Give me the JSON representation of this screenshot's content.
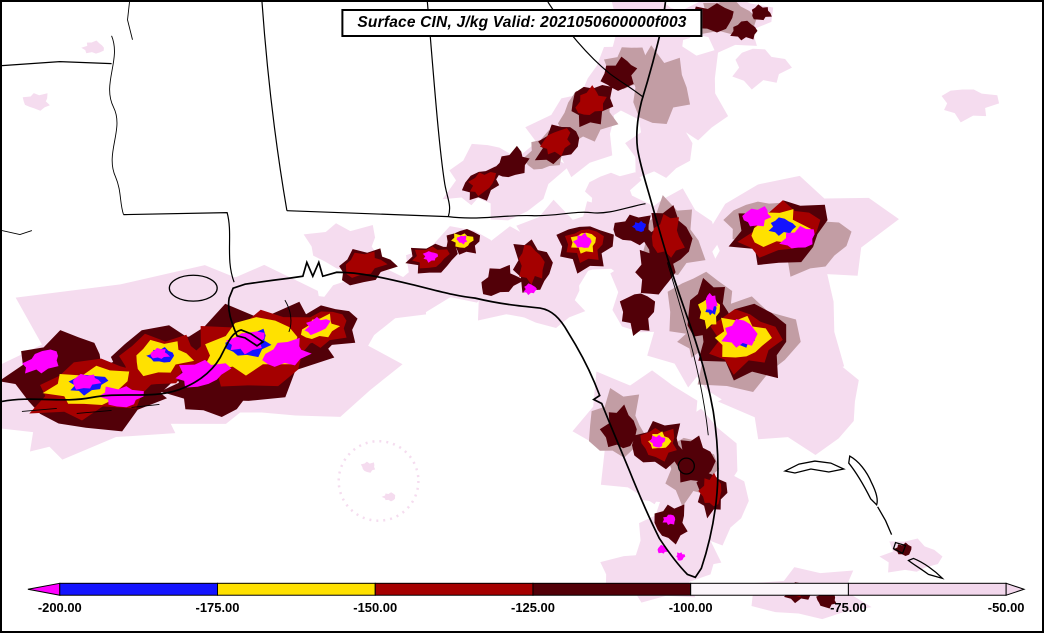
{
  "title_box": {
    "text": "Surface CIN, J/kg Valid: 2021050600000f003"
  },
  "chart_data": {
    "type": "heatmap",
    "subtype": "filled-contour-weather-map",
    "title": "Surface CIN, J/kg Valid: 2021050600000f003",
    "variable": "Surface CIN",
    "units": "J/kg",
    "valid_time": "2021050600000f003",
    "region": "Southeastern United States, Gulf of Mexico, Florida, northwest Bahamas",
    "levels": [
      -200,
      -175,
      -150,
      -125,
      -100,
      -75,
      -50
    ],
    "colorbar": {
      "tick_labels": [
        "-200.00",
        "-175.00",
        "-150.00",
        "-125.00",
        "-100.00",
        "-75.00",
        "-50.00"
      ],
      "segments": [
        {
          "range": "< -200",
          "color": "#FF00FF",
          "shape": "arrow-left"
        },
        {
          "range": "-200 to -175",
          "color": "#1414FF"
        },
        {
          "range": "-175 to -150",
          "color": "#FFE100"
        },
        {
          "range": "-150 to -125",
          "color": "#A50000"
        },
        {
          "range": "-125 to -100",
          "color": "#520008"
        },
        {
          "range": "-100 to -75",
          "color": "#FBF5FA"
        },
        {
          "range": "-75 to -50",
          "color": "#F2D7EC"
        },
        {
          "range": "> -50",
          "color": "#F2D7EC",
          "shape": "arrow-right"
        }
      ]
    },
    "map_colors": {
      "pink": "#F5DCEF",
      "grey": "#C29DA4",
      "maroon": "#520008",
      "red": "#A50000",
      "yellow": "#FFE100",
      "blue": "#1414FF",
      "magenta": "#FF00FF",
      "outline": "#000000",
      "background": "#FFFFFF"
    },
    "blobs": [
      [
        170,
        352,
        190,
        78,
        -8,
        "pink"
      ],
      [
        88,
        398,
        115,
        48,
        -5,
        "pink"
      ],
      [
        300,
        362,
        95,
        58,
        -15,
        "pink"
      ],
      [
        253,
        302,
        62,
        30,
        -10,
        "pink"
      ],
      [
        380,
        300,
        62,
        28,
        -12,
        "pink"
      ],
      [
        344,
        246,
        36,
        22,
        0,
        "pink"
      ],
      [
        450,
        270,
        56,
        36,
        -20,
        "pink"
      ],
      [
        520,
        272,
        56,
        40,
        -30,
        "pink"
      ],
      [
        566,
        246,
        46,
        40,
        0,
        "pink"
      ],
      [
        620,
        236,
        46,
        40,
        0,
        "pink"
      ],
      [
        672,
        242,
        42,
        46,
        0,
        "pink"
      ],
      [
        520,
        182,
        46,
        28,
        -35,
        "pink"
      ],
      [
        576,
        130,
        46,
        36,
        -40,
        "pink"
      ],
      [
        622,
        82,
        40,
        36,
        -40,
        "pink"
      ],
      [
        660,
        60,
        36,
        46,
        0,
        "pink"
      ],
      [
        648,
        24,
        46,
        28,
        0,
        "pink"
      ],
      [
        728,
        20,
        40,
        26,
        0,
        "pink"
      ],
      [
        690,
        92,
        36,
        44,
        0,
        "pink"
      ],
      [
        660,
        142,
        30,
        36,
        0,
        "pink"
      ],
      [
        612,
        190,
        26,
        18,
        -20,
        "pink"
      ],
      [
        545,
        300,
        42,
        24,
        0,
        "pink"
      ],
      [
        480,
        172,
        36,
        24,
        -35,
        "pink"
      ],
      [
        790,
        238,
        88,
        56,
        -10,
        "pink"
      ],
      [
        762,
        332,
        88,
        76,
        0,
        "pink"
      ],
      [
        800,
        402,
        62,
        46,
        0,
        "pink"
      ],
      [
        700,
        322,
        46,
        62,
        0,
        "pink"
      ],
      [
        650,
        292,
        40,
        40,
        0,
        "pink"
      ],
      [
        640,
        432,
        56,
        62,
        0,
        "pink"
      ],
      [
        690,
        472,
        46,
        56,
        0,
        "pink"
      ],
      [
        676,
        542,
        40,
        40,
        0,
        "pink"
      ],
      [
        716,
        502,
        30,
        42,
        0,
        "pink"
      ],
      [
        656,
        576,
        52,
        24,
        0,
        "pink"
      ],
      [
        810,
        596,
        56,
        24,
        0,
        "pink"
      ],
      [
        912,
        558,
        28,
        16,
        0,
        "pink"
      ],
      [
        970,
        102,
        26,
        15,
        0,
        "pink"
      ],
      [
        35,
        100,
        13,
        8,
        0,
        "pink"
      ],
      [
        92,
        46,
        10,
        6,
        0,
        "pink"
      ],
      [
        760,
        66,
        26,
        18,
        0,
        "pink"
      ],
      [
        368,
        468,
        7,
        5,
        0,
        "pink"
      ],
      [
        389,
        498,
        6,
        4,
        0,
        "pink"
      ],
      [
        378,
        482,
        40,
        40,
        0,
        "ring"
      ],
      [
        660,
        86,
        30,
        35,
        0,
        "grey"
      ],
      [
        628,
        66,
        22,
        20,
        -30,
        "grey"
      ],
      [
        586,
        116,
        28,
        24,
        -35,
        "grey"
      ],
      [
        672,
        240,
        30,
        36,
        0,
        "grey"
      ],
      [
        740,
        342,
        56,
        46,
        0,
        "grey"
      ],
      [
        700,
        312,
        30,
        40,
        0,
        "grey"
      ],
      [
        618,
        426,
        28,
        32,
        0,
        "grey"
      ],
      [
        812,
        242,
        36,
        28,
        -15,
        "grey"
      ],
      [
        758,
        222,
        30,
        22,
        -15,
        "grey"
      ],
      [
        545,
        152,
        20,
        16,
        -35,
        "grey"
      ],
      [
        725,
        16,
        30,
        17,
        0,
        "grey"
      ],
      [
        690,
        470,
        24,
        30,
        0,
        "grey"
      ],
      [
        95,
        392,
        72,
        36,
        -8,
        "maroon"
      ],
      [
        55,
        366,
        46,
        28,
        -15,
        "maroon"
      ],
      [
        160,
        362,
        56,
        32,
        -10,
        "maroon"
      ],
      [
        255,
        352,
        76,
        46,
        -12,
        "maroon"
      ],
      [
        210,
        392,
        40,
        22,
        0,
        "maroon"
      ],
      [
        320,
        332,
        36,
        22,
        -20,
        "maroon"
      ],
      [
        365,
        266,
        28,
        16,
        -15,
        "maroon"
      ],
      [
        432,
        258,
        24,
        14,
        -10,
        "maroon"
      ],
      [
        463,
        241,
        16,
        12,
        0,
        "maroon"
      ],
      [
        500,
        281,
        20,
        13,
        -20,
        "maroon"
      ],
      [
        532,
        266,
        18,
        25,
        -10,
        "maroon"
      ],
      [
        585,
        246,
        26,
        22,
        0,
        "maroon"
      ],
      [
        635,
        229,
        20,
        14,
        0,
        "maroon"
      ],
      [
        668,
        238,
        22,
        28,
        0,
        "maroon"
      ],
      [
        482,
        183,
        20,
        13,
        -35,
        "maroon"
      ],
      [
        512,
        163,
        18,
        12,
        -35,
        "maroon"
      ],
      [
        558,
        143,
        22,
        16,
        -35,
        "maroon"
      ],
      [
        592,
        103,
        22,
        18,
        -40,
        "maroon"
      ],
      [
        620,
        73,
        18,
        14,
        -40,
        "maroon"
      ],
      [
        712,
        16,
        22,
        13,
        0,
        "maroon"
      ],
      [
        745,
        29,
        12,
        9,
        0,
        "maroon"
      ],
      [
        762,
        11,
        10,
        7,
        0,
        "maroon"
      ],
      [
        782,
        232,
        46,
        30,
        -15,
        "maroon"
      ],
      [
        745,
        342,
        42,
        36,
        0,
        "maroon"
      ],
      [
        710,
        312,
        22,
        28,
        0,
        "maroon"
      ],
      [
        655,
        272,
        18,
        22,
        0,
        "maroon"
      ],
      [
        638,
        312,
        16,
        20,
        0,
        "maroon"
      ],
      [
        660,
        446,
        26,
        22,
        0,
        "maroon"
      ],
      [
        695,
        462,
        18,
        22,
        0,
        "maroon"
      ],
      [
        712,
        494,
        14,
        20,
        0,
        "maroon"
      ],
      [
        672,
        524,
        16,
        18,
        0,
        "maroon"
      ],
      [
        620,
        430,
        16,
        20,
        0,
        "maroon"
      ],
      [
        800,
        594,
        14,
        9,
        0,
        "maroon"
      ],
      [
        828,
        602,
        10,
        7,
        0,
        "maroon"
      ],
      [
        905,
        551,
        8,
        6,
        0,
        "maroon"
      ],
      [
        90,
        390,
        56,
        27,
        -8,
        "red"
      ],
      [
        160,
        360,
        43,
        24,
        -10,
        "red"
      ],
      [
        253,
        350,
        62,
        36,
        -12,
        "red"
      ],
      [
        320,
        330,
        27,
        16,
        -20,
        "red"
      ],
      [
        363,
        264,
        20,
        11,
        -15,
        "red"
      ],
      [
        430,
        257,
        17,
        10,
        -10,
        "red"
      ],
      [
        585,
        244,
        18,
        16,
        0,
        "red"
      ],
      [
        668,
        236,
        15,
        20,
        0,
        "red"
      ],
      [
        482,
        182,
        14,
        9,
        -35,
        "red"
      ],
      [
        557,
        141,
        15,
        11,
        -35,
        "red"
      ],
      [
        591,
        101,
        15,
        12,
        -40,
        "red"
      ],
      [
        781,
        230,
        37,
        23,
        -15,
        "red"
      ],
      [
        744,
        340,
        33,
        28,
        0,
        "red"
      ],
      [
        660,
        444,
        18,
        15,
        0,
        "red"
      ],
      [
        712,
        492,
        10,
        15,
        0,
        "red"
      ],
      [
        531,
        264,
        12,
        18,
        -10,
        "red"
      ],
      [
        799,
        592,
        9,
        6,
        0,
        "red"
      ],
      [
        88,
        387,
        38,
        18,
        -8,
        "yellow"
      ],
      [
        250,
        347,
        46,
        26,
        -12,
        "yellow"
      ],
      [
        160,
        358,
        28,
        16,
        -10,
        "yellow"
      ],
      [
        462,
        240,
        10,
        7,
        0,
        "yellow"
      ],
      [
        584,
        242,
        12,
        10,
        0,
        "yellow"
      ],
      [
        779,
        228,
        27,
        16,
        -15,
        "yellow"
      ],
      [
        742,
        338,
        25,
        20,
        0,
        "yellow"
      ],
      [
        710,
        312,
        10,
        14,
        0,
        "yellow"
      ],
      [
        319,
        328,
        18,
        10,
        -20,
        "yellow"
      ],
      [
        660,
        442,
        10,
        8,
        0,
        "yellow"
      ],
      [
        86,
        384,
        18,
        9,
        -8,
        "blue"
      ],
      [
        248,
        344,
        22,
        12,
        -12,
        "blue"
      ],
      [
        160,
        356,
        12,
        7,
        0,
        "blue"
      ],
      [
        783,
        226,
        12,
        8,
        0,
        "blue"
      ],
      [
        744,
        336,
        12,
        10,
        0,
        "blue"
      ],
      [
        640,
        226,
        6,
        5,
        0,
        "blue"
      ],
      [
        712,
        308,
        5,
        7,
        0,
        "blue"
      ],
      [
        84,
        382,
        14,
        7,
        -8,
        "magenta"
      ],
      [
        120,
        397,
        20,
        10,
        0,
        "magenta"
      ],
      [
        40,
        362,
        18,
        10,
        -20,
        "magenta"
      ],
      [
        158,
        354,
        9,
        5,
        0,
        "magenta"
      ],
      [
        200,
        374,
        25,
        12,
        -10,
        "magenta"
      ],
      [
        246,
        342,
        18,
        10,
        -12,
        "magenta"
      ],
      [
        285,
        354,
        22,
        12,
        -15,
        "magenta"
      ],
      [
        316,
        326,
        12,
        7,
        -20,
        "magenta"
      ],
      [
        430,
        256,
        7,
        5,
        0,
        "magenta"
      ],
      [
        462,
        239,
        5,
        4,
        0,
        "magenta"
      ],
      [
        583,
        241,
        8,
        7,
        0,
        "magenta"
      ],
      [
        530,
        289,
        6,
        5,
        0,
        "magenta"
      ],
      [
        758,
        216,
        14,
        9,
        -15,
        "magenta"
      ],
      [
        800,
        238,
        16,
        10,
        -15,
        "magenta"
      ],
      [
        741,
        334,
        16,
        13,
        0,
        "magenta"
      ],
      [
        712,
        302,
        6,
        8,
        0,
        "magenta"
      ],
      [
        658,
        442,
        7,
        6,
        0,
        "magenta"
      ],
      [
        670,
        521,
        6,
        5,
        0,
        "magenta"
      ],
      [
        663,
        551,
        5,
        4,
        0,
        "magenta"
      ],
      [
        681,
        558,
        4,
        4,
        0,
        "magenta"
      ],
      [
        797,
        591,
        5,
        4,
        0,
        "magenta"
      ]
    ]
  }
}
